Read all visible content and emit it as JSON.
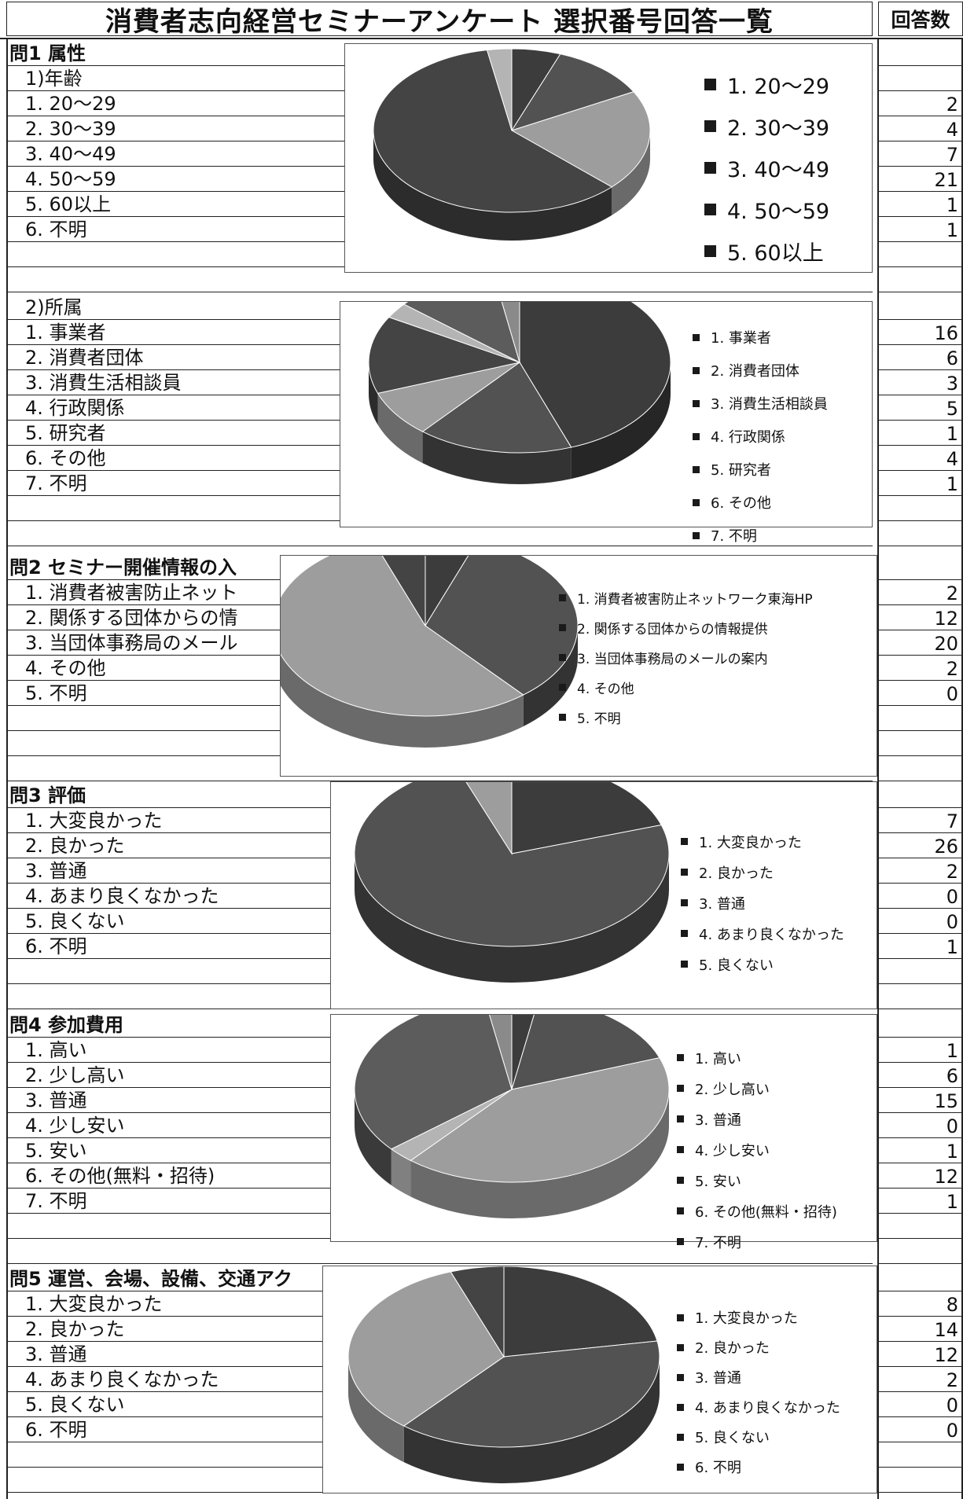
{
  "title": "消費者志向経営セミナーアンケート 選択番号回答一覧",
  "count_header": "回答数",
  "sections": [
    {
      "top": 52,
      "rows": [
        {
          "label": "問1  属性",
          "type": "head"
        },
        {
          "label": "1)年齢",
          "type": "sub"
        },
        {
          "label": "1. 20～29",
          "count": "2"
        },
        {
          "label": "2. 30～39",
          "count": "4"
        },
        {
          "label": "3. 40～49",
          "count": "7"
        },
        {
          "label": "4. 50～59",
          "count": "21"
        },
        {
          "label": "5. 60以上",
          "count": "1"
        },
        {
          "label": "6.  不明",
          "count": "1"
        },
        {
          "label": ""
        },
        {
          "label": ""
        }
      ]
    },
    {
      "top": 375,
      "rows": [
        {
          "label": "2)所属",
          "type": "sub"
        },
        {
          "label": "1. 事業者",
          "count": "16"
        },
        {
          "label": "2. 消費者団体",
          "count": "6"
        },
        {
          "label": "3. 消費生活相談員",
          "count": "3"
        },
        {
          "label": "4. 行政関係",
          "count": "5"
        },
        {
          "label": "5. 研究者",
          "count": "1"
        },
        {
          "label": "6. その他",
          "count": "4"
        },
        {
          "label": "7. 不明",
          "count": "1"
        },
        {
          "label": ""
        },
        {
          "label": ""
        }
      ]
    },
    {
      "top": 706,
      "rows": [
        {
          "label": "問2  セミナー開催情報の入",
          "type": "head"
        },
        {
          "label": "1. 消費者被害防止ネット",
          "count": "2"
        },
        {
          "label": "2. 関係する団体からの情",
          "count": "12"
        },
        {
          "label": "3. 当団体事務局のメール",
          "count": "20"
        },
        {
          "label": "4. その他",
          "count": "2"
        },
        {
          "label": "5. 不明",
          "count": "0"
        },
        {
          "label": ""
        },
        {
          "label": ""
        },
        {
          "label": ""
        }
      ]
    },
    {
      "top": 996,
      "rows": [
        {
          "label": "問3  評価",
          "type": "head"
        },
        {
          "label": "1. 大変良かった",
          "count": "7"
        },
        {
          "label": "2. 良かった",
          "count": "26"
        },
        {
          "label": "3. 普通",
          "count": "2"
        },
        {
          "label": "4. あまり良くなかった",
          "count": "0"
        },
        {
          "label": "5. 良くない",
          "count": "0"
        },
        {
          "label": "6. 不明",
          "count": "1"
        },
        {
          "label": ""
        },
        {
          "label": ""
        }
      ]
    },
    {
      "top": 1288,
      "rows": [
        {
          "label": "問4 参加費用",
          "type": "head"
        },
        {
          "label": "1. 高い",
          "count": "1"
        },
        {
          "label": "2. 少し高い",
          "count": "6"
        },
        {
          "label": "3. 普通",
          "count": "15"
        },
        {
          "label": "4. 少し安い",
          "count": "0"
        },
        {
          "label": "5. 安い",
          "count": "1"
        },
        {
          "label": "6. その他(無料・招待)",
          "count": "12"
        },
        {
          "label": "7. 不明",
          "count": "1"
        },
        {
          "label": ""
        },
        {
          "label": ""
        }
      ]
    },
    {
      "top": 1611,
      "rows": [
        {
          "label": "問5 運営、会場、設備、交通アク",
          "type": "head"
        },
        {
          "label": "1. 大変良かった",
          "count": "8"
        },
        {
          "label": "2. 良かった",
          "count": "14"
        },
        {
          "label": "3. 普通",
          "count": "12"
        },
        {
          "label": "4. あまり良くなかった",
          "count": "2"
        },
        {
          "label": "5. 良くない",
          "count": "0"
        },
        {
          "label": "6. 不明",
          "count": "0"
        },
        {
          "label": ""
        },
        {
          "label": ""
        }
      ]
    }
  ],
  "chart_data": [
    {
      "type": "pie",
      "categories": [
        "1. 20～29",
        "2. 30～39",
        "3. 40～49",
        "4. 50～59",
        "5. 60以上"
      ],
      "values": [
        2,
        4,
        7,
        21,
        1
      ]
    },
    {
      "type": "pie",
      "categories": [
        "1. 事業者",
        "2. 消費者団体",
        "3. 消費生活相談員",
        "4. 行政関係",
        "5. 研究者",
        "6. その他",
        "7. 不明"
      ],
      "values": [
        16,
        6,
        3,
        5,
        1,
        4,
        1
      ]
    },
    {
      "type": "pie",
      "categories": [
        "1. 消費者被害防止ネットワーク東海HP",
        "2. 関係する団体からの情報提供",
        "3. 当団体事務局のメールの案内",
        "4. その他",
        "5. 不明"
      ],
      "values": [
        2,
        12,
        20,
        2,
        0
      ]
    },
    {
      "type": "pie",
      "categories": [
        "1. 大変良かった",
        "2. 良かった",
        "3. 普通",
        "4. あまり良くなかった",
        "5. 良くない"
      ],
      "values": [
        7,
        26,
        2,
        0,
        0
      ]
    },
    {
      "type": "pie",
      "categories": [
        "1. 高い",
        "2. 少し高い",
        "3. 普通",
        "4. 少し安い",
        "5. 安い",
        "6. その他(無料・招待)",
        "7. 不明"
      ],
      "values": [
        1,
        6,
        15,
        0,
        1,
        12,
        1
      ]
    },
    {
      "type": "pie",
      "categories": [
        "1. 大変良かった",
        "2. 良かった",
        "3. 普通",
        "4. あまり良くなかった",
        "5. 良くない",
        "6. 不明"
      ],
      "values": [
        8,
        14,
        12,
        2,
        0,
        0
      ]
    }
  ]
}
